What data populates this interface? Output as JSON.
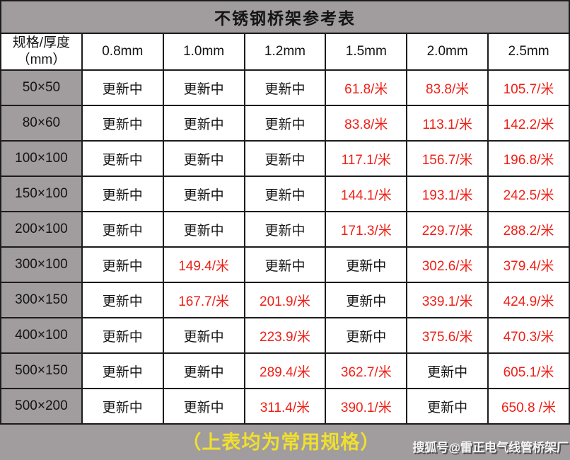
{
  "title": "不锈钢桥架参考表",
  "header": {
    "corner_line1": "规格/厚度",
    "corner_line2": "（mm）"
  },
  "footer": {
    "note": "（上表均为常用规格）",
    "watermark": "搜狐号@雷正电气线管桥架厂"
  },
  "colors": {
    "panel_gray": "#a19c9e",
    "price_red": "#ee2017",
    "note_yellow": "#f0e02c",
    "border": "#1c1c1c"
  },
  "chart_data": {
    "type": "table",
    "title": "不锈钢桥架参考表",
    "row_header": "规格/厚度（mm）",
    "columns": [
      "0.8mm",
      "1.0mm",
      "1.2mm",
      "1.5mm",
      "2.0mm",
      "2.5mm"
    ],
    "updating_label": "更新中",
    "price_unit": "/米",
    "rows": [
      {
        "spec": "50×50",
        "values": [
          "更新中",
          "更新中",
          "更新中",
          "61.8/米",
          "83.8/米",
          "105.7/米"
        ]
      },
      {
        "spec": "80×60",
        "values": [
          "更新中",
          "更新中",
          "更新中",
          "83.8/米",
          "113.1/米",
          "142.2/米"
        ]
      },
      {
        "spec": "100×100",
        "values": [
          "更新中",
          "更新中",
          "更新中",
          "117.1/米",
          "156.7/米",
          "196.8/米"
        ]
      },
      {
        "spec": "150×100",
        "values": [
          "更新中",
          "更新中",
          "更新中",
          "144.1/米",
          "193.1/米",
          "242.5/米"
        ]
      },
      {
        "spec": "200×100",
        "values": [
          "更新中",
          "更新中",
          "更新中",
          "171.3/米",
          "229.7/米",
          "288.2/米"
        ]
      },
      {
        "spec": "300×100",
        "values": [
          "更新中",
          "149.4/米",
          "更新中",
          "更新中",
          "302.6/米",
          "379.4/米"
        ]
      },
      {
        "spec": "300×150",
        "values": [
          "更新中",
          "167.7/米",
          "201.9/米",
          "更新中",
          "339.1/米",
          "424.9/米"
        ]
      },
      {
        "spec": "400×100",
        "values": [
          "更新中",
          "更新中",
          "223.9/米",
          "更新中",
          "375.6/米",
          "470.3/米"
        ]
      },
      {
        "spec": "500×150",
        "values": [
          "更新中",
          "更新中",
          "289.4/米",
          "362.7/米",
          "更新中",
          "605.1/米"
        ]
      },
      {
        "spec": "500×200",
        "values": [
          "更新中",
          "更新中",
          "311.4/米",
          "390.1/米",
          "更新中",
          "650.8 /米"
        ]
      }
    ]
  }
}
